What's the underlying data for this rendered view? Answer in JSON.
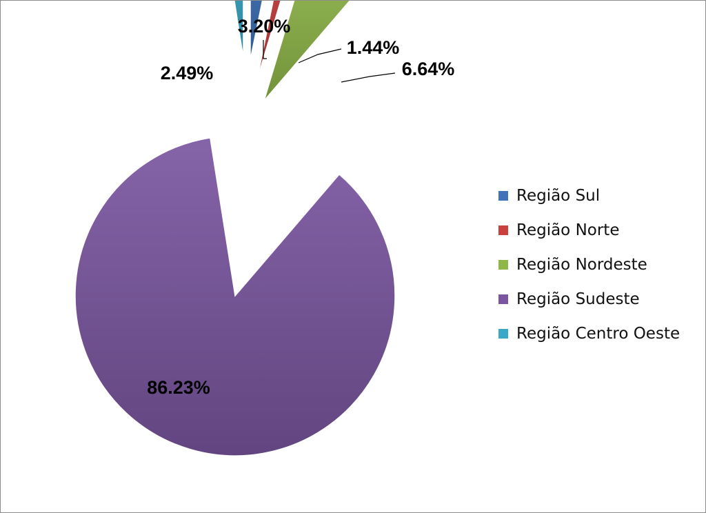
{
  "chart_data": {
    "type": "pie",
    "categories": [
      "Região Sul",
      "Região Norte",
      "Região Nordeste",
      "Região Sudeste",
      "Região Centro Oeste"
    ],
    "values": [
      3.2,
      1.44,
      6.64,
      86.23,
      2.49
    ],
    "data_labels": [
      "3.20%",
      "1.44%",
      "6.64%",
      "86.23%",
      "2.49%"
    ],
    "colors": [
      "#3f72b8",
      "#c9403d",
      "#8fb648",
      "#7a56a0",
      "#3aa9c7"
    ],
    "legend_position": "right",
    "exploded": true,
    "start_angle": "top",
    "direction": "clockwise",
    "title": ""
  },
  "legend": {
    "items": [
      {
        "label": "Região Sul",
        "color": "#3f72b8"
      },
      {
        "label": "Região Norte",
        "color": "#c9403d"
      },
      {
        "label": "Região Nordeste",
        "color": "#8fb648"
      },
      {
        "label": "Região Sudeste",
        "color": "#7a56a0"
      },
      {
        "label": "Região Centro Oeste",
        "color": "#3aa9c7"
      }
    ]
  }
}
